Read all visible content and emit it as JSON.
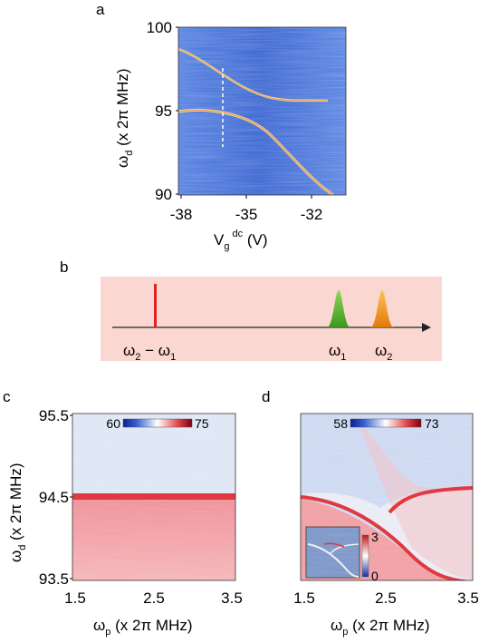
{
  "panels": {
    "a": {
      "letter": "a",
      "ylabel": "ωd (x 2π MHz)",
      "ylabel_main": "ω",
      "ylabel_sub": "d",
      "ylabel_rest": " (x 2π MHz)",
      "xlabel_main": "V",
      "xlabel_sub": "g",
      "xlabel_sup": "dc",
      "xlabel_rest": " (V)",
      "yticks": [
        "100",
        "95",
        "90"
      ],
      "xticks": [
        "-38",
        "-35",
        "-32"
      ],
      "colors": {
        "background": "#3f6bd6",
        "branch": "#f2d77c",
        "dashed": "#ffffff"
      }
    },
    "b": {
      "letter": "b",
      "labels": {
        "diff_main": "ω",
        "diff_sub2": "2",
        "diff_minus": " − ω",
        "diff_sub1": "1",
        "w1_main": "ω",
        "w1_sub": "1",
        "w2_main": "ω",
        "w2_sub": "2"
      },
      "colors": {
        "background": "#fbd7d2",
        "red_line": "#e32020",
        "green_peak": "#6cc13a",
        "orange_peak": "#f59b1c"
      }
    },
    "c": {
      "letter": "c",
      "ylabel_main": "ω",
      "ylabel_sub": "d",
      "ylabel_rest": " (x 2π MHz)",
      "xlabel_main": "ω",
      "xlabel_sub": "p",
      "xlabel_rest": " (x 2π MHz)",
      "yticks": [
        "95.5",
        "94.5",
        "93.5"
      ],
      "xticks": [
        "1.5",
        "2.5",
        "3.5"
      ],
      "colorbar": {
        "min": "60",
        "max": "75"
      }
    },
    "d": {
      "letter": "d",
      "xlabel_main": "ω",
      "xlabel_sub": "p",
      "xlabel_rest": " (x 2π MHz)",
      "xticks": [
        "1.5",
        "2.5",
        "3.5"
      ],
      "colorbar": {
        "min": "58",
        "max": "73"
      },
      "inset_colorbar": {
        "min": "0",
        "max": "3"
      }
    }
  }
}
